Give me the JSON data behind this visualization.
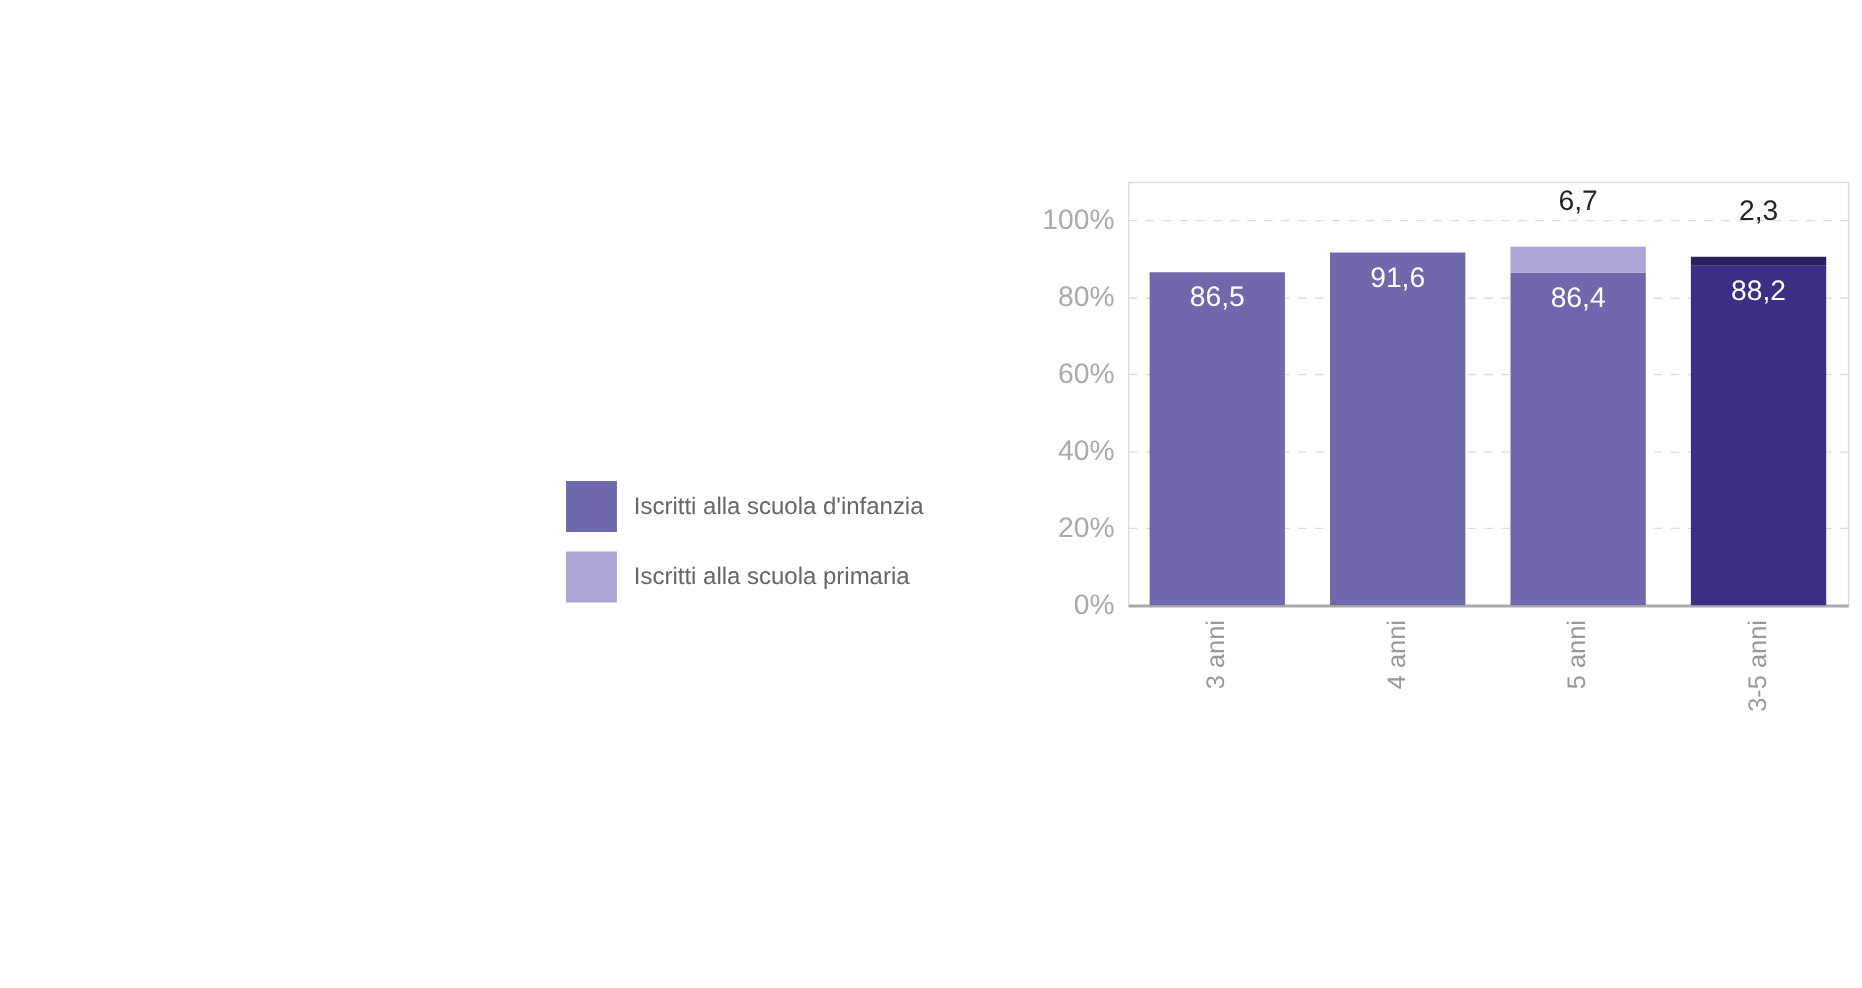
{
  "chart_data": {
    "type": "bar",
    "stacked": true,
    "categories": [
      "3 anni",
      "4 anni",
      "5 anni",
      "3-5 anni"
    ],
    "series": [
      {
        "name": "Iscritti alla scuola d'infanzia",
        "color": "#6e68ad",
        "colors": [
          "#6e68ad",
          "#6e68ad",
          "#6e68ad",
          "#3d2e85"
        ],
        "values": [
          86.5,
          91.6,
          86.4,
          88.2
        ],
        "value_labels": [
          "86,5",
          "91,6",
          "86,4",
          "88,2"
        ]
      },
      {
        "name": "Iscritti alla scuola primaria",
        "color": "#a9a6d6",
        "colors": [
          "#a9a6d6",
          "#a9a6d6",
          "#a9a6d6",
          "#2a2060"
        ],
        "values": [
          null,
          null,
          6.7,
          2.3
        ],
        "value_labels": [
          null,
          null,
          "6,7",
          "2,3"
        ]
      }
    ],
    "ylim": [
      0,
      110
    ],
    "yticks": [
      {
        "value": 0,
        "label": "0%"
      },
      {
        "value": 20,
        "label": "20%"
      },
      {
        "value": 40,
        "label": "40%"
      },
      {
        "value": 60,
        "label": "60%"
      },
      {
        "value": 80,
        "label": "80%"
      },
      {
        "value": 100,
        "label": "100%"
      }
    ],
    "grid": "y",
    "legend": "bottom left"
  }
}
